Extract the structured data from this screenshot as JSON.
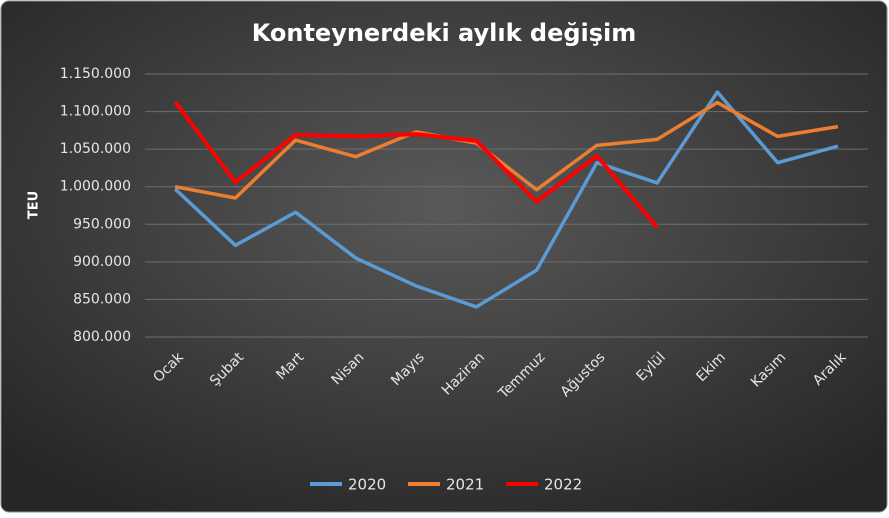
{
  "chart_data": {
    "type": "line",
    "title": "Konteynerdeki aylık değişim",
    "y_label": "TEU",
    "categories": [
      "Ocak",
      "Şubat",
      "Mart",
      "Nisan",
      "Mayıs",
      "Haziran",
      "Temmuz",
      "Ağustos",
      "Eylül",
      "Ekim",
      "Kasım",
      "Aralık"
    ],
    "series": [
      {
        "name": "2020",
        "color": "#5b9bd5",
        "values": [
          997000,
          922000,
          966000,
          905000,
          868000,
          840000,
          889000,
          1032000,
          1005000,
          1126000,
          1032000,
          1054000
        ]
      },
      {
        "name": "2021",
        "color": "#ed7d31",
        "values": [
          1000000,
          985000,
          1062000,
          1040000,
          1073000,
          1058000,
          996000,
          1055000,
          1063000,
          1112000,
          1067000,
          1080000
        ]
      },
      {
        "name": "2022",
        "color": "#ff0000",
        "values": [
          1113000,
          1006000,
          1069000,
          1067000,
          1070000,
          1061000,
          980000,
          1041000,
          946000,
          null,
          null,
          null
        ]
      }
    ],
    "ylim": [
      800000,
      1150000
    ],
    "yticks": [
      {
        "value": 800000,
        "label": "800.000"
      },
      {
        "value": 850000,
        "label": "850.000"
      },
      {
        "value": 900000,
        "label": "900.000"
      },
      {
        "value": 950000,
        "label": "950.000"
      },
      {
        "value": 1000000,
        "label": "1.000.000"
      },
      {
        "value": 1050000,
        "label": "1.050.000"
      },
      {
        "value": 1100000,
        "label": "1.100.000"
      },
      {
        "value": 1150000,
        "label": "1.150.000"
      }
    ],
    "grid": true,
    "legend": "bottom"
  }
}
